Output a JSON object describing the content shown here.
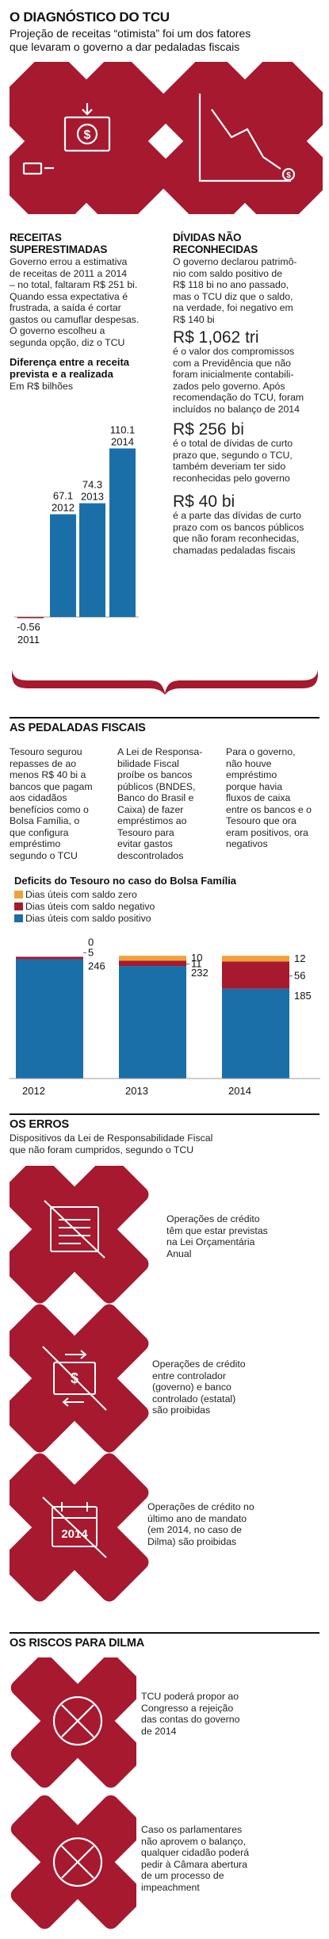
{
  "header": {
    "title": "O DIAGNÓSTICO DO TCU",
    "subtitle_1": "Projeção de receitas “otimista” foi um dos fatores",
    "subtitle_2": "que levaram o governo a dar pedaladas fiscais"
  },
  "colors": {
    "brand_red": "#a6192e",
    "blue": "#1a6fa8",
    "orange": "#f0a23a",
    "dark": "#111111"
  },
  "icons": {
    "left": "banknote-down-arrow-icon",
    "right": "decline-chart-icon"
  },
  "receitas": {
    "head_1": "RECEITAS",
    "head_2": "SUPERESTIMADAS",
    "lines": [
      "Governo errou a estimativa",
      "de receitas de 2011 a 2014",
      "– no total, faltaram R$ 251 bi.",
      "Quando essa expectativa é",
      "frustrada, a saída é cortar",
      "gastos ou camuflar despesas.",
      "O governo escolheu a",
      "segunda opção, diz o TCU"
    ]
  },
  "dividas": {
    "head_1": "DÍVIDAS NÃO",
    "head_2": "RECONHECIDAS",
    "lines": [
      "O governo declarou patrimô-",
      "nio com saldo positivo de",
      "R$ 118 bi no ano passado,",
      "mas o TCU diz que o saldo,",
      "na verdade, foi negativo em",
      "R$ 140 bi"
    ],
    "facts": [
      {
        "value": "R$ 1,062 tri",
        "lines": [
          "é o valor dos compromissos",
          "com a Previdência que não",
          "foram inicialmente contabili-",
          "zados pelo governo. Após",
          "recomendação do TCU, foram",
          "incluídos no balanço de 2014"
        ]
      },
      {
        "value": "R$ 256 bi",
        "lines": [
          "é o total de dívidas de curto",
          "prazo que, segundo o TCU,",
          "também deveriam ter sido",
          "reconhecidas pelo governo"
        ]
      },
      {
        "value": "R$ 40 bi",
        "lines": [
          "é a parte das dívidas de curto",
          "prazo com os bancos públicos",
          "que não foram reconhecidas,",
          "chamadas pedaladas fiscais"
        ]
      }
    ]
  },
  "chart_data": [
    {
      "type": "bar",
      "title": "Diferença entre a receita prevista e a realizada",
      "title_1": "Diferença entre a receita",
      "title_2": "prevista e a realizada",
      "ylabel": "Em R$ bilhões",
      "categories": [
        "2011",
        "2012",
        "2013",
        "2014"
      ],
      "values": [
        -0.56,
        67.1,
        74.3,
        110.1
      ],
      "value_labels": [
        "-0.56",
        "67.1",
        "74.3",
        "110.1"
      ],
      "ylim": [
        -1,
        115
      ],
      "grid": false
    },
    {
      "type": "bar",
      "stacked": true,
      "title": "Deficits do Tesouro no caso do Bolsa Família",
      "categories": [
        "2012",
        "2013",
        "2014"
      ],
      "series": [
        {
          "name": "Dias úteis com saldo positivo",
          "color": "#1a6fa8",
          "values": [
            246,
            232,
            185
          ]
        },
        {
          "name": "Dias úteis com saldo negativo",
          "color": "#a6192e",
          "values": [
            5,
            11,
            56
          ]
        },
        {
          "name": "Dias úteis com saldo zero",
          "color": "#f0a23a",
          "values": [
            0,
            10,
            12
          ]
        }
      ],
      "legend": [
        "Dias úteis com saldo zero",
        "Dias úteis com saldo negativo",
        "Dias úteis com saldo positivo"
      ],
      "legend_position": "top-left"
    }
  ],
  "pedaladas": {
    "title": "AS PEDALADAS FISCAIS",
    "col1": [
      "Tesouro segurou",
      "repasses de ao",
      "menos R$ 40 bi a",
      "bancos que pagam",
      "aos cidadãos",
      "benefícios como o",
      "Bolsa Família, o",
      "que configura",
      "empréstimo",
      "segundo o TCU"
    ],
    "col2": [
      "A Lei de Responsa-",
      "bilidade Fiscal",
      "proíbe os bancos",
      "públicos (BNDES,",
      "Banco do Brasil e",
      "Caixa) de fazer",
      "empréstimos ao",
      "Tesouro para",
      "evitar gastos",
      "descontrolados"
    ],
    "col3": [
      "Para o governo,",
      "não houve",
      "empréstimo",
      "porque havia",
      "fluxos de caixa",
      "entre os bancos e o",
      "Tesouro que ora",
      "eram positivos, ora",
      "negativos"
    ]
  },
  "erros": {
    "title": "OS ERROS",
    "desc_1": "Dispositivos da Lei de Responsabilidade Fiscal",
    "desc_2": "que não foram cumpridos, segundo o TCU",
    "items": [
      {
        "icon": "crossed-document-icon",
        "lines": [
          "Operações de crédito",
          "têm que estar previstas",
          "na Lei Orçamentária",
          "Anual"
        ]
      },
      {
        "icon": "crossed-money-transfer-icon",
        "lines": [
          "Operações de crédito",
          "entre controlador",
          "(governo) e banco",
          "controlado (estatal)",
          "são proibidas"
        ]
      },
      {
        "icon": "crossed-calendar-icon",
        "lines": [
          "Operações de crédito no",
          "último ano de mandato",
          "(em 2014, no caso de",
          "Dilma) são proibidas"
        ]
      }
    ]
  },
  "riscos": {
    "title": "OS RISCOS PARA DILMA",
    "items": [
      {
        "icon": "crossed-circle-icon",
        "lines": [
          "TCU poderá propor ao",
          "Congresso a rejeição",
          "das contas do governo",
          "de 2014"
        ]
      },
      {
        "icon": "crossed-circle-icon",
        "lines": [
          "Caso os parlamentares",
          "não aprovem o balanço,",
          "qualquer cidadão poderá",
          "pedir à Câmara abertura",
          "de um processo de",
          "impeachment"
        ]
      }
    ]
  }
}
